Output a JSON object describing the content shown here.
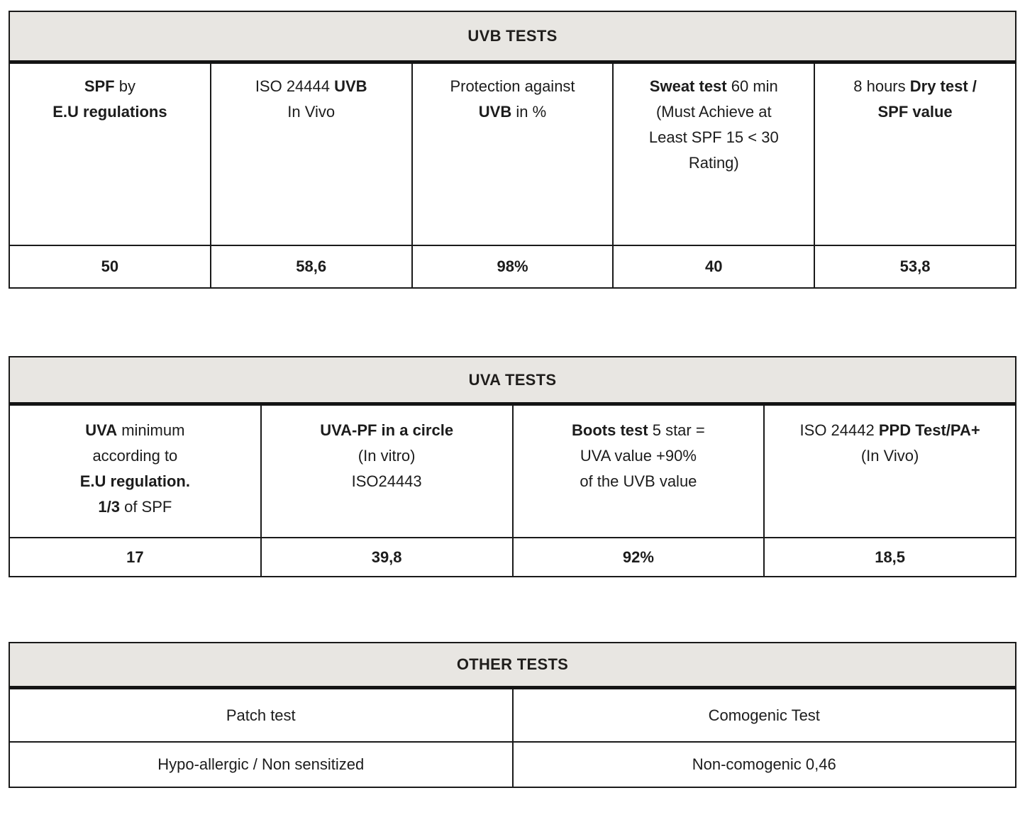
{
  "uvb": {
    "title": "UVB TESTS",
    "h1": {
      "a": "SPF",
      "b": " by",
      "c": "E.U regulations"
    },
    "h2": {
      "a": "ISO 24444 ",
      "b": "UVB",
      "c": "In Vivo"
    },
    "h3": {
      "a": "Protection against",
      "b": "UVB",
      "c": " in %"
    },
    "h4": {
      "a": "Sweat test",
      "b": " 60 min",
      "c": "(Must Achieve at",
      "d": "Least SPF 15 < 30",
      "e": "Rating)"
    },
    "h5": {
      "a": "8 hours ",
      "b": "Dry test /",
      "c": "SPF value"
    },
    "v1": "50",
    "v2": "58,6",
    "v3": "98%",
    "v4": "40",
    "v5": "53,8"
  },
  "uva": {
    "title": "UVA TESTS",
    "h1": {
      "a": "UVA",
      "b": " minimum",
      "c": "according to",
      "d": "E.U regulation.",
      "e": "1/3",
      "f": " of SPF"
    },
    "h2": {
      "a": "UVA-PF in a circle",
      "b": "(In vitro)",
      "c": "ISO24443"
    },
    "h3": {
      "a": "Boots test",
      "b": " 5 star =",
      "c": "UVA value +90%",
      "d": "of the UVB value"
    },
    "h4": {
      "a": "ISO 24442 ",
      "b": "PPD Test/PA+",
      "c": "(In Vivo)"
    },
    "v1": "17",
    "v2": "39,8",
    "v3": "92%",
    "v4": "18,5"
  },
  "other": {
    "title": "OTHER TESTS",
    "r1c1": "Patch test",
    "r1c2": "Comogenic Test",
    "r2c1": "Hypo-allergic / Non sensitized",
    "r2c2": "Non-comogenic 0,46"
  },
  "colors": {
    "band_bg": "#e8e6e2",
    "border": "#1a1a1a",
    "text": "#1c1c1c"
  }
}
